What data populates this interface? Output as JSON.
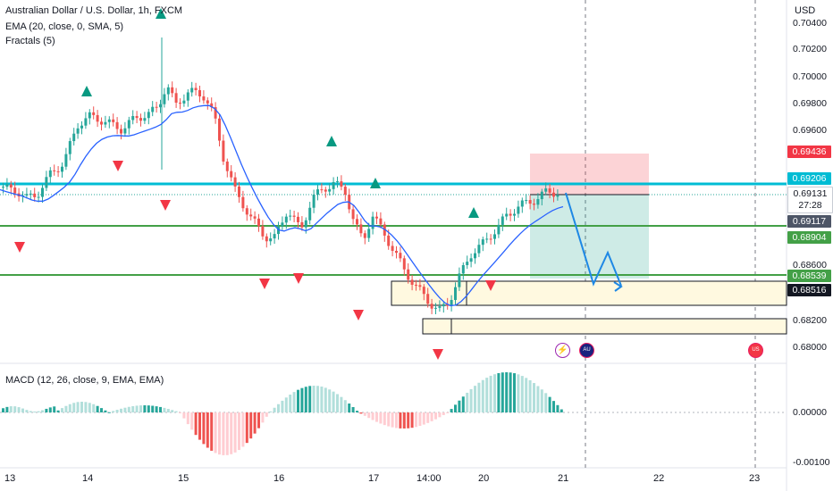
{
  "legend": {
    "symbol": "Australian Dollar / U.S. Dollar, 1h, FXCM",
    "ema": "EMA (20, close, 0, SMA, 5)",
    "fractals": "Fractals (5)",
    "macd": "MACD (12, 26, close, 9, EMA, EMA)"
  },
  "axis": {
    "currency": "USD",
    "price_labels": [
      "0.70400",
      "0.70200",
      "0.70000",
      "0.69800",
      "0.69600",
      "0.68600",
      "0.68200",
      "0.68000"
    ],
    "macd_labels": [
      "0.00000",
      "-0.00100"
    ],
    "time_labels": [
      "13",
      "14",
      "15",
      "16",
      "17",
      "14:00",
      "20",
      "21",
      "22",
      "23"
    ]
  },
  "price_tags": {
    "stop": {
      "value": "0.69436",
      "color": "#f23645"
    },
    "resistance": {
      "value": "0.69206",
      "color": "#00bcd4"
    },
    "current": {
      "value": "0.69131",
      "countdown": "27:28",
      "color": "#ffffff"
    },
    "ema": {
      "value": "0.69117",
      "color": "#4d5566"
    },
    "level_mid": {
      "value": "0.68904",
      "color": "#43a047"
    },
    "level_low": {
      "value": "0.68539",
      "color": "#43a047"
    },
    "level_box": {
      "value": "0.68516",
      "color": "#131722"
    }
  },
  "events": [
    {
      "icon": "lightning-icon",
      "glyph": "⚡"
    },
    {
      "icon": "au-flag-icon",
      "glyph": "AU"
    },
    {
      "icon": "us-flag-icon",
      "glyph": "US"
    }
  ],
  "colors": {
    "up": "#26a69a",
    "down": "#ef5350",
    "ema": "#2962ff",
    "cyan": "#00bcd4",
    "green_level": "#43a047",
    "projection": "#1e88e5"
  }
}
